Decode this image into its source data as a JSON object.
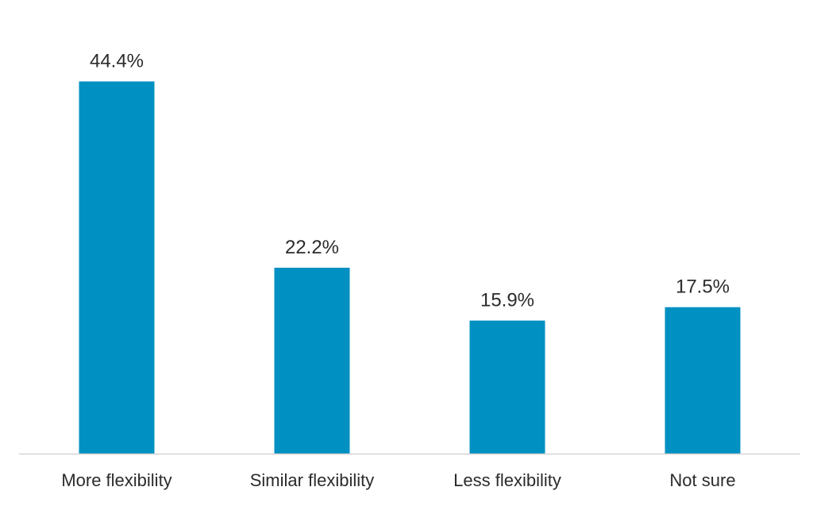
{
  "chart_data": {
    "type": "bar",
    "categories": [
      "More flexibility",
      "Similar flexibility",
      "Less flexibility",
      "Not sure"
    ],
    "values": [
      44.4,
      22.2,
      15.9,
      17.5
    ],
    "value_labels": [
      "44.4%",
      "22.2%",
      "15.9%",
      "17.5%"
    ],
    "title": "",
    "xlabel": "",
    "ylabel": "",
    "ylim": [
      0,
      44.4
    ],
    "grid": false,
    "legend": "none",
    "bar_color": "#0090c1"
  }
}
